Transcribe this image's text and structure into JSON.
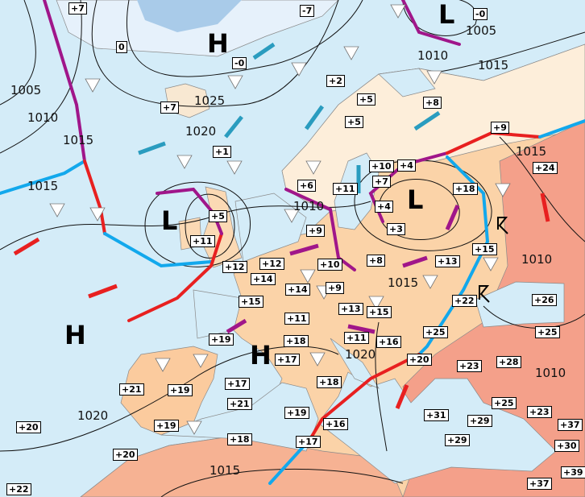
{
  "map": {
    "colors": {
      "sea": "#d4ecf8",
      "land_cool": "#fdeeda",
      "land_warm": "#fbd3a8",
      "land_hot": "#f4a08a",
      "land_very_hot": "#ef8572",
      "ice": "#a9cbe9",
      "warm_front": "#e82020",
      "cold_front": "#12a8ec",
      "occluded_front": "#a0168a",
      "isobar": "#111111"
    },
    "pressure_centers": [
      "H",
      "L",
      "L",
      "L",
      "H",
      "H"
    ],
    "isobar_labels": [
      "1005",
      "1010",
      "1015",
      "1015",
      "1025",
      "1020",
      "1010",
      "1005",
      "1015",
      "1015",
      "1010",
      "1010",
      "1015",
      "1020",
      "1010",
      "1020",
      "1015"
    ],
    "temperatures": [
      "+7",
      "0",
      "-7",
      "-0",
      "-0",
      "+2",
      "+5",
      "+8",
      "+7",
      "+5",
      "+1",
      "+9",
      "+24",
      "+10",
      "+4",
      "+7",
      "+6",
      "+11",
      "+18",
      "+4",
      "+3",
      "+5",
      "+11",
      "+9",
      "+12",
      "+12",
      "+14",
      "+10",
      "+8",
      "+13",
      "+15",
      "+14",
      "+9",
      "+15",
      "+22",
      "+26",
      "+13",
      "+15",
      "+11",
      "+19",
      "+17",
      "+18",
      "+11",
      "+16",
      "+25",
      "+25",
      "+20",
      "+23",
      "+28",
      "+21",
      "+19",
      "+17",
      "+21",
      "+18",
      "+19",
      "+19",
      "+20",
      "+16",
      "+31",
      "+25",
      "+29",
      "+23",
      "+37",
      "+18",
      "+17",
      "+29",
      "+30",
      "+20",
      "+39",
      "+37",
      "+22"
    ],
    "symbols": [
      "snow-shower-icon",
      "rain-icon",
      "wind-arrow-icon",
      "thunderstorm-icon"
    ]
  }
}
